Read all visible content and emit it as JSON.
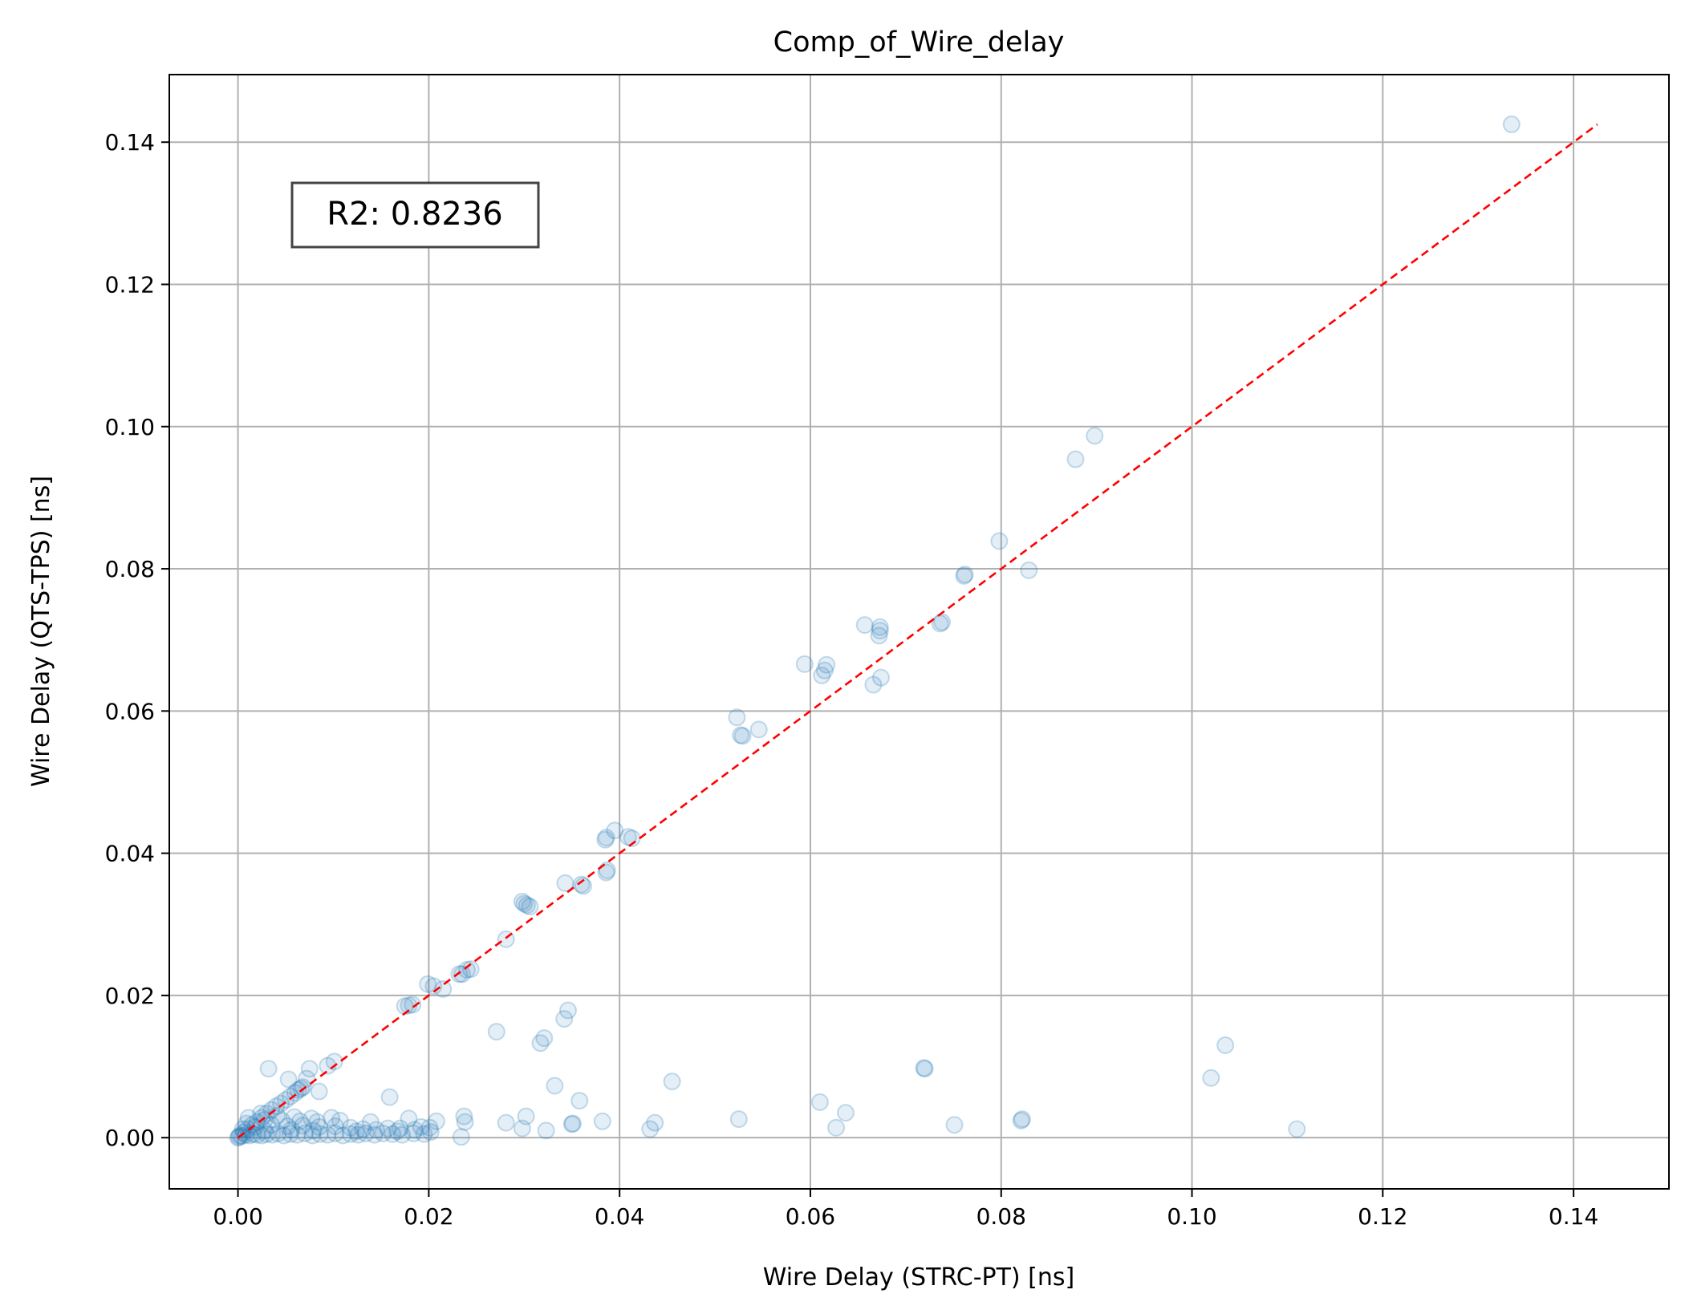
{
  "chart_data": {
    "type": "scatter",
    "title": "Comp_of_Wire_delay",
    "xlabel": "Wire Delay (STRC-PT) [ns]",
    "ylabel": "Wire Delay (QTS-TPS) [ns]",
    "xlim": [
      -0.0072,
      0.15
    ],
    "ylim": [
      -0.0072,
      0.1495
    ],
    "xticks": [
      "0.00",
      "0.02",
      "0.04",
      "0.06",
      "0.08",
      "0.10",
      "0.12",
      "0.14"
    ],
    "yticks": [
      "0.00",
      "0.02",
      "0.04",
      "0.06",
      "0.08",
      "0.10",
      "0.12",
      "0.14"
    ],
    "grid": true,
    "annotation": "R2: 0.8236",
    "point_color": "#1f77b4",
    "reference_line": {
      "from": [
        0,
        0
      ],
      "to": [
        0.1425,
        0.1425
      ],
      "color": "#ff0000",
      "style": "dashed"
    },
    "points": [
      [
        0.1335,
        0.1425
      ],
      [
        0.0898,
        0.0987
      ],
      [
        0.0878,
        0.0954
      ],
      [
        0.0798,
        0.0839
      ],
      [
        0.0829,
        0.0798
      ],
      [
        0.0762,
        0.0792
      ],
      [
        0.0761,
        0.079
      ],
      [
        0.0738,
        0.0725
      ],
      [
        0.0736,
        0.0723
      ],
      [
        0.0657,
        0.0721
      ],
      [
        0.0673,
        0.0718
      ],
      [
        0.0673,
        0.0713
      ],
      [
        0.0672,
        0.0706
      ],
      [
        0.0674,
        0.0647
      ],
      [
        0.0666,
        0.0637
      ],
      [
        0.0594,
        0.0666
      ],
      [
        0.0617,
        0.0665
      ],
      [
        0.0615,
        0.0657
      ],
      [
        0.0612,
        0.065
      ],
      [
        0.0523,
        0.0591
      ],
      [
        0.0546,
        0.0574
      ],
      [
        0.0527,
        0.0566
      ],
      [
        0.0529,
        0.0565
      ],
      [
        0.0395,
        0.0432
      ],
      [
        0.0386,
        0.0422
      ],
      [
        0.0409,
        0.0423
      ],
      [
        0.0413,
        0.0421
      ],
      [
        0.0385,
        0.0419
      ],
      [
        0.0387,
        0.0376
      ],
      [
        0.0386,
        0.0373
      ],
      [
        0.0343,
        0.0358
      ],
      [
        0.0362,
        0.0354
      ],
      [
        0.036,
        0.0356
      ],
      [
        0.0298,
        0.0332
      ],
      [
        0.03,
        0.0329
      ],
      [
        0.0303,
        0.0327
      ],
      [
        0.0306,
        0.0325
      ],
      [
        0.0281,
        0.0279
      ],
      [
        0.0235,
        0.023
      ],
      [
        0.024,
        0.0236
      ],
      [
        0.0244,
        0.0237
      ],
      [
        0.0232,
        0.023
      ],
      [
        0.0199,
        0.0216
      ],
      [
        0.0205,
        0.0213
      ],
      [
        0.0215,
        0.0209
      ],
      [
        0.0175,
        0.0185
      ],
      [
        0.0183,
        0.0187
      ],
      [
        0.0179,
        0.0186
      ],
      [
        0.0346,
        0.0179
      ],
      [
        0.0342,
        0.0167
      ],
      [
        0.0321,
        0.014
      ],
      [
        0.0317,
        0.0133
      ],
      [
        0.0271,
        0.0149
      ],
      [
        0.072,
        0.0097
      ],
      [
        0.0719,
        0.0098
      ],
      [
        0.1035,
        0.013
      ],
      [
        0.102,
        0.0084
      ],
      [
        0.0455,
        0.0079
      ],
      [
        0.0332,
        0.0073
      ],
      [
        0.0358,
        0.0052
      ],
      [
        0.061,
        0.005
      ],
      [
        0.0637,
        0.0035
      ],
      [
        0.0627,
        0.0014
      ],
      [
        0.0525,
        0.0026
      ],
      [
        0.0437,
        0.0021
      ],
      [
        0.0432,
        0.0012
      ],
      [
        0.0351,
        0.002
      ],
      [
        0.035,
        0.0019
      ],
      [
        0.0382,
        0.0023
      ],
      [
        0.0302,
        0.003
      ],
      [
        0.0281,
        0.0021
      ],
      [
        0.0298,
        0.0013
      ],
      [
        0.0323,
        0.001
      ],
      [
        0.0237,
        0.003
      ],
      [
        0.0238,
        0.0022
      ],
      [
        0.0234,
        0.0001
      ],
      [
        0.0208,
        0.0023
      ],
      [
        0.0201,
        0.0014
      ],
      [
        0.0159,
        0.0057
      ],
      [
        0.0179,
        0.0027
      ],
      [
        0.017,
        0.0013
      ],
      [
        0.0185,
        0.0011
      ],
      [
        0.0822,
        0.0026
      ],
      [
        0.0821,
        0.0024
      ],
      [
        0.0751,
        0.0018
      ],
      [
        0.111,
        0.0012
      ],
      [
        0.0032,
        0.0097
      ],
      [
        0.0075,
        0.0097
      ],
      [
        0.0094,
        0.0101
      ],
      [
        0.0101,
        0.0107
      ],
      [
        0.0053,
        0.0082
      ],
      [
        0.0072,
        0.0083
      ],
      [
        0.0085,
        0.0065
      ],
      [
        0.0063,
        0.0067
      ],
      [
        0.0066,
        0.0069
      ],
      [
        0.0068,
        0.0071
      ],
      [
        0.006,
        0.0063
      ],
      [
        0.0055,
        0.0058
      ],
      [
        0.005,
        0.0053
      ],
      [
        0.0045,
        0.0048
      ],
      [
        0.004,
        0.0044
      ],
      [
        0.0035,
        0.0039
      ],
      [
        0.003,
        0.0034
      ],
      [
        0.0025,
        0.0028
      ],
      [
        0.002,
        0.0022
      ],
      [
        0.0015,
        0.0018
      ],
      [
        0.001,
        0.0012
      ],
      [
        0.0006,
        0.0007
      ],
      [
        0.0002,
        0.0003
      ],
      [
        0.0,
        0.0
      ],
      [
        0.0001,
        0.0001
      ],
      [
        0.0004,
        0.0002
      ],
      [
        0.0008,
        0.0004
      ],
      [
        0.0012,
        0.0003
      ],
      [
        0.0016,
        0.0005
      ],
      [
        0.002,
        0.0004
      ],
      [
        0.0025,
        0.0003
      ],
      [
        0.003,
        0.0005
      ],
      [
        0.0036,
        0.0004
      ],
      [
        0.0042,
        0.0006
      ],
      [
        0.0048,
        0.0003
      ],
      [
        0.0055,
        0.0005
      ],
      [
        0.0062,
        0.0004
      ],
      [
        0.007,
        0.0006
      ],
      [
        0.0078,
        0.0003
      ],
      [
        0.0086,
        0.0005
      ],
      [
        0.0094,
        0.0004
      ],
      [
        0.0102,
        0.0006
      ],
      [
        0.011,
        0.0003
      ],
      [
        0.0118,
        0.0005
      ],
      [
        0.0126,
        0.0004
      ],
      [
        0.0134,
        0.0006
      ],
      [
        0.0143,
        0.0004
      ],
      [
        0.0152,
        0.0006
      ],
      [
        0.0162,
        0.0005
      ],
      [
        0.0172,
        0.0004
      ],
      [
        0.0184,
        0.0006
      ],
      [
        0.0195,
        0.0005
      ],
      [
        0.0018,
        0.0015
      ],
      [
        0.0035,
        0.0018
      ],
      [
        0.0052,
        0.0016
      ],
      [
        0.0068,
        0.0017
      ],
      [
        0.0085,
        0.0015
      ],
      [
        0.0102,
        0.0016
      ],
      [
        0.0118,
        0.0014
      ],
      [
        0.0028,
        0.0025
      ],
      [
        0.0046,
        0.0024
      ],
      [
        0.0065,
        0.0023
      ],
      [
        0.0083,
        0.0022
      ],
      [
        0.0098,
        0.0028
      ],
      [
        0.0041,
        0.0031
      ],
      [
        0.0059,
        0.0029
      ],
      [
        0.0077,
        0.0027
      ],
      [
        0.0011,
        0.0028
      ],
      [
        0.0024,
        0.0034
      ],
      [
        0.0009,
        0.002
      ],
      [
        0.0005,
        0.0012
      ],
      [
        0.0131,
        0.0012
      ],
      [
        0.0145,
        0.0011
      ],
      [
        0.0157,
        0.0013
      ],
      [
        0.0107,
        0.0024
      ],
      [
        0.0139,
        0.0022
      ],
      [
        0.0028,
        0.001
      ],
      [
        0.0056,
        0.0011
      ],
      [
        0.0079,
        0.001
      ],
      [
        0.0124,
        0.0009
      ],
      [
        0.0167,
        0.0009
      ],
      [
        0.0192,
        0.0015
      ],
      [
        0.0202,
        0.0008
      ]
    ]
  }
}
